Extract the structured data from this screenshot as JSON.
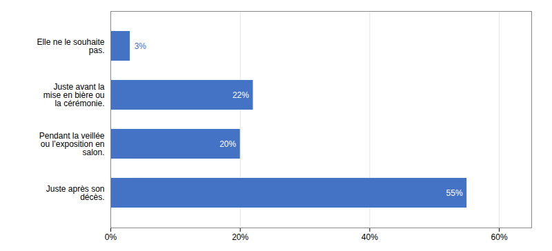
{
  "chart_data": {
    "type": "bar",
    "orientation": "horizontal",
    "categories": [
      "Elle ne le souhaite\npas.",
      "Juste avant la\nmise en bière ou\nla cérémonie.",
      "Pendant la veillée\nou l’exposition en\nsalon.",
      "Juste après son\ndécès."
    ],
    "values": [
      3,
      22,
      20,
      55
    ],
    "value_labels": [
      "3%",
      "22%",
      "20%",
      "55%"
    ],
    "data_labels": true,
    "color": "#4472C4",
    "xlim": [
      0,
      65
    ],
    "xticks": [
      {
        "value": 0,
        "label": "0%"
      },
      {
        "value": 20,
        "label": "20%"
      },
      {
        "value": 40,
        "label": "40%"
      },
      {
        "value": 60,
        "label": "60%"
      }
    ],
    "grid": true
  }
}
